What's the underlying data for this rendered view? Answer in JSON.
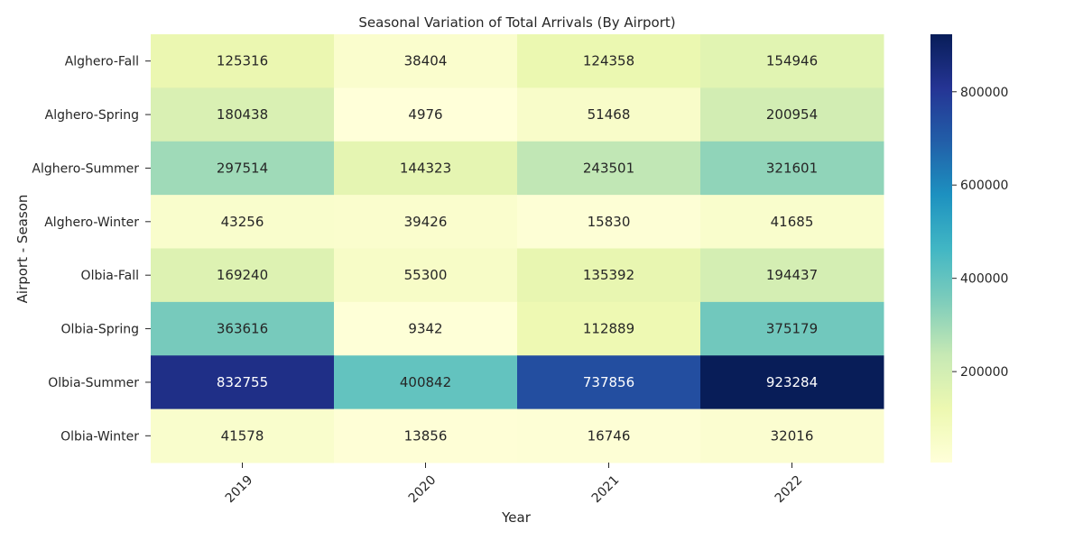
{
  "chart_data": {
    "type": "heatmap",
    "title": "Seasonal Variation of Total Arrivals (By Airport)",
    "xlabel": "Year",
    "ylabel": "Airport - Season",
    "columns": [
      "2019",
      "2020",
      "2021",
      "2022"
    ],
    "rows": [
      "Alghero-Fall",
      "Alghero-Spring",
      "Alghero-Summer",
      "Alghero-Winter",
      "Olbia-Fall",
      "Olbia-Spring",
      "Olbia-Summer",
      "Olbia-Winter"
    ],
    "values": [
      [
        125316,
        38404,
        124358,
        154946
      ],
      [
        180438,
        4976,
        51468,
        200954
      ],
      [
        297514,
        144323,
        243501,
        321601
      ],
      [
        43256,
        39426,
        15830,
        41685
      ],
      [
        169240,
        55300,
        135392,
        194437
      ],
      [
        363616,
        9342,
        112889,
        375179
      ],
      [
        832755,
        400842,
        737856,
        923284
      ],
      [
        41578,
        13856,
        16746,
        32016
      ]
    ],
    "colormap": "YlGnBu",
    "colorbar": {
      "min": 4976,
      "max": 923284,
      "ticks": [
        200000,
        400000,
        600000,
        800000
      ]
    }
  }
}
